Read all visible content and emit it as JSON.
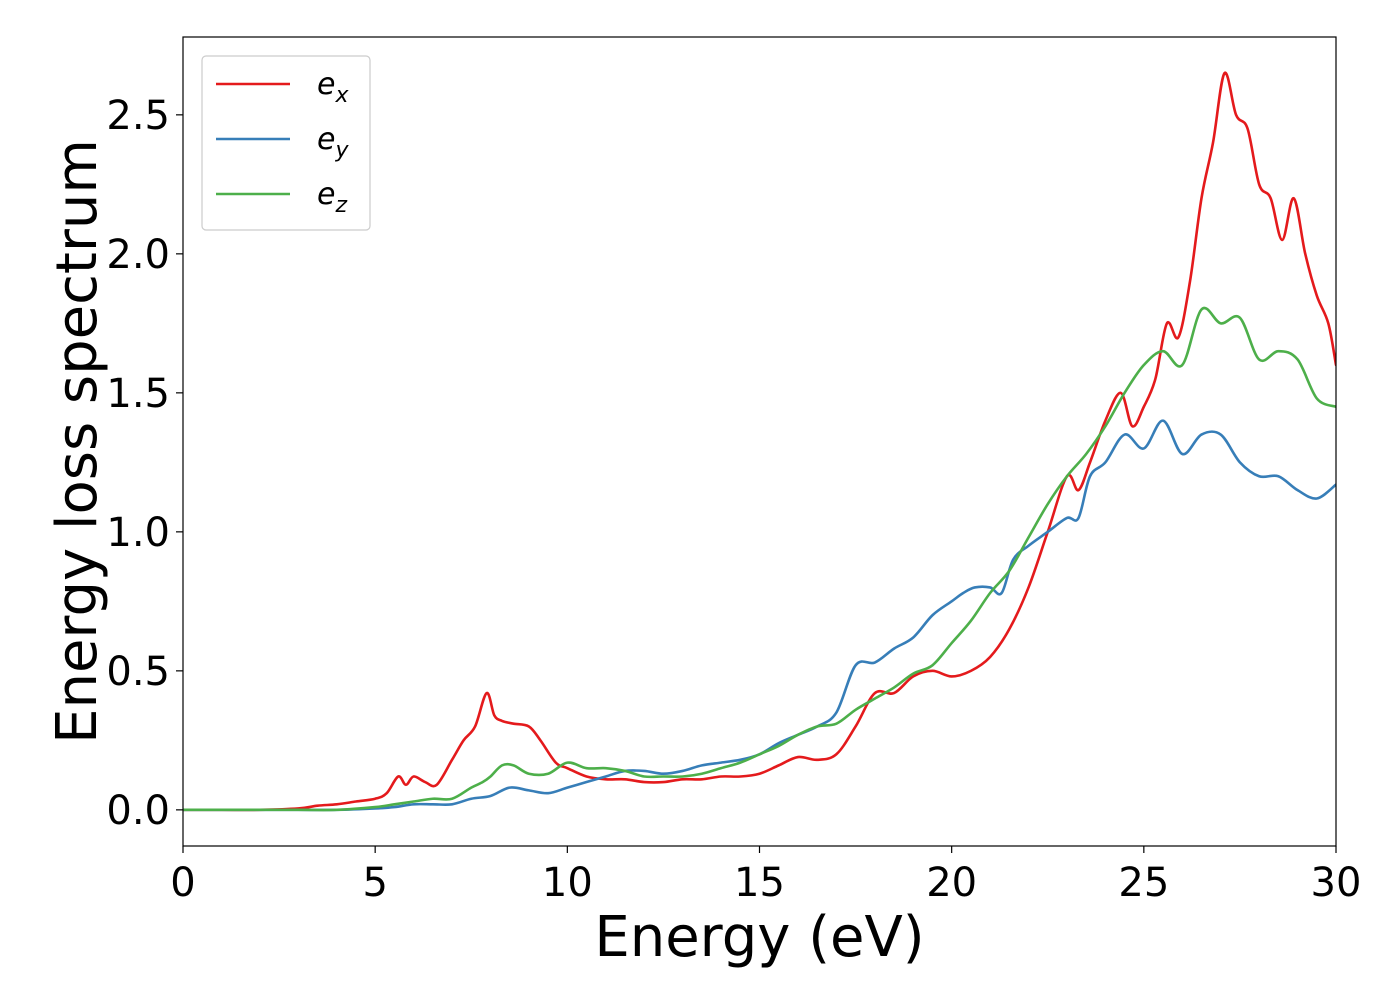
{
  "chart_data": {
    "type": "line",
    "title": "",
    "xlabel": "Energy (eV)",
    "ylabel": "Energy loss spectrum",
    "xlim": [
      0,
      30
    ],
    "ylim": [
      -0.13,
      2.78
    ],
    "xticks": [
      0,
      5,
      10,
      15,
      20,
      25,
      30
    ],
    "xtick_labels": [
      "0",
      "5",
      "10",
      "15",
      "20",
      "25",
      "30"
    ],
    "yticks": [
      0.0,
      0.5,
      1.0,
      1.5,
      2.0,
      2.5
    ],
    "ytick_labels": [
      "0.0",
      "0.5",
      "1.0",
      "1.5",
      "2.0",
      "2.5"
    ],
    "grid": false,
    "legend_position": "upper-left",
    "series": [
      {
        "name": "e_x",
        "legend_base": "e",
        "legend_sub": "x",
        "color": "#e41a1c",
        "x": [
          0,
          1,
          2,
          3,
          3.5,
          4,
          4.5,
          5,
          5.3,
          5.6,
          5.8,
          6.0,
          6.3,
          6.6,
          7.0,
          7.3,
          7.6,
          7.9,
          8.1,
          8.3,
          8.6,
          9.0,
          9.3,
          9.7,
          10,
          10.5,
          11,
          11.5,
          12,
          12.5,
          13,
          13.5,
          14,
          14.5,
          15,
          15.5,
          16,
          16.5,
          17,
          17.5,
          18,
          18.5,
          19,
          19.5,
          20,
          20.5,
          21,
          21.5,
          22,
          22.5,
          23,
          23.3,
          23.6,
          24.0,
          24.4,
          24.7,
          25.0,
          25.3,
          25.6,
          25.9,
          26.2,
          26.5,
          26.8,
          27.1,
          27.4,
          27.7,
          28.0,
          28.3,
          28.6,
          28.9,
          29.2,
          29.5,
          29.8,
          30
        ],
        "y": [
          0,
          0,
          0,
          0.005,
          0.015,
          0.02,
          0.03,
          0.04,
          0.06,
          0.12,
          0.09,
          0.12,
          0.1,
          0.09,
          0.18,
          0.25,
          0.3,
          0.42,
          0.34,
          0.32,
          0.31,
          0.3,
          0.25,
          0.17,
          0.15,
          0.12,
          0.11,
          0.11,
          0.1,
          0.1,
          0.11,
          0.11,
          0.12,
          0.12,
          0.13,
          0.16,
          0.19,
          0.18,
          0.2,
          0.3,
          0.42,
          0.42,
          0.48,
          0.5,
          0.48,
          0.5,
          0.55,
          0.65,
          0.8,
          1.0,
          1.2,
          1.15,
          1.25,
          1.4,
          1.5,
          1.38,
          1.45,
          1.55,
          1.75,
          1.7,
          1.9,
          2.2,
          2.4,
          2.65,
          2.5,
          2.45,
          2.25,
          2.2,
          2.05,
          2.2,
          2.0,
          1.85,
          1.75,
          1.6
        ]
      },
      {
        "name": "e_y",
        "legend_base": "e",
        "legend_sub": "y",
        "color": "#377eb8",
        "x": [
          0,
          1,
          2,
          3,
          4,
          5,
          5.5,
          6,
          6.5,
          7,
          7.5,
          8,
          8.5,
          9,
          9.5,
          10,
          10.5,
          11,
          11.5,
          12,
          12.5,
          13,
          13.5,
          14,
          14.5,
          15,
          15.5,
          16,
          16.5,
          17,
          17.5,
          18,
          18.5,
          19,
          19.5,
          20,
          20.3,
          20.6,
          21,
          21.3,
          21.6,
          22,
          22.5,
          23,
          23.3,
          23.6,
          24,
          24.5,
          25,
          25.5,
          26,
          26.5,
          27,
          27.5,
          28,
          28.5,
          29,
          29.5,
          30
        ],
        "y": [
          0,
          0,
          0,
          0,
          0,
          0.005,
          0.01,
          0.02,
          0.02,
          0.02,
          0.04,
          0.05,
          0.08,
          0.07,
          0.06,
          0.08,
          0.1,
          0.12,
          0.14,
          0.14,
          0.13,
          0.14,
          0.16,
          0.17,
          0.18,
          0.2,
          0.24,
          0.27,
          0.3,
          0.35,
          0.52,
          0.53,
          0.58,
          0.62,
          0.7,
          0.75,
          0.78,
          0.8,
          0.8,
          0.78,
          0.9,
          0.95,
          1.0,
          1.05,
          1.05,
          1.2,
          1.25,
          1.35,
          1.3,
          1.4,
          1.28,
          1.35,
          1.35,
          1.25,
          1.2,
          1.2,
          1.15,
          1.12,
          1.17
        ]
      },
      {
        "name": "e_z",
        "legend_base": "e",
        "legend_sub": "z",
        "color": "#4daf4a",
        "x": [
          0,
          1,
          2,
          3,
          4,
          5,
          5.5,
          6,
          6.5,
          7,
          7.5,
          7.8,
          8,
          8.3,
          8.6,
          9,
          9.5,
          10,
          10.5,
          11,
          11.5,
          12,
          12.5,
          13,
          13.5,
          14,
          14.5,
          15,
          15.5,
          16,
          16.5,
          17,
          17.5,
          18,
          18.5,
          19,
          19.5,
          20,
          20.5,
          21,
          21.5,
          22,
          22.5,
          23,
          23.5,
          24,
          24.5,
          25,
          25.5,
          26,
          26.5,
          27,
          27.5,
          28,
          28.5,
          29,
          29.5,
          30
        ],
        "y": [
          0,
          0,
          0,
          0,
          0,
          0.01,
          0.02,
          0.03,
          0.04,
          0.04,
          0.08,
          0.1,
          0.12,
          0.16,
          0.16,
          0.13,
          0.13,
          0.17,
          0.15,
          0.15,
          0.14,
          0.12,
          0.12,
          0.12,
          0.13,
          0.15,
          0.17,
          0.2,
          0.23,
          0.27,
          0.3,
          0.31,
          0.36,
          0.4,
          0.44,
          0.49,
          0.52,
          0.6,
          0.68,
          0.78,
          0.86,
          0.98,
          1.1,
          1.2,
          1.28,
          1.38,
          1.5,
          1.6,
          1.65,
          1.6,
          1.8,
          1.75,
          1.77,
          1.62,
          1.65,
          1.62,
          1.48,
          1.45
        ]
      }
    ]
  }
}
